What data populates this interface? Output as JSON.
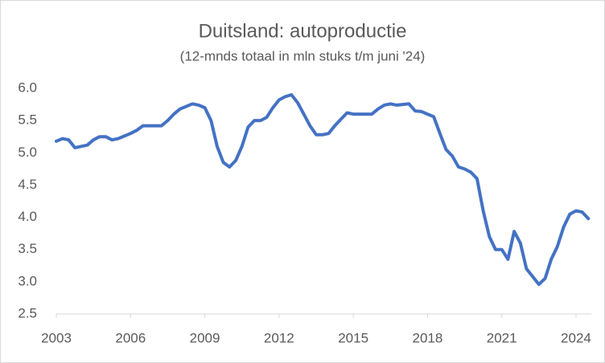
{
  "chart_data": {
    "type": "line",
    "title": "Duitsland: autoproductie",
    "subtitle": "(12-mnds totaal in mln stuks t/m juni '24)",
    "xlim": [
      2003,
      2024.62
    ],
    "xticks": [
      2003,
      2006,
      2009,
      2012,
      2015,
      2018,
      2021,
      2024
    ],
    "ylim": [
      2.5,
      6.0
    ],
    "yticks": [
      {
        "value": 2.5,
        "label": "2.5"
      },
      {
        "value": 3,
        "label": "3.0"
      },
      {
        "value": 3.5,
        "label": "3.5"
      },
      {
        "value": 4,
        "label": "4.0"
      },
      {
        "value": 4.5,
        "label": "4.5"
      },
      {
        "value": 5,
        "label": "5.0"
      },
      {
        "value": 5.5,
        "label": "5.5"
      },
      {
        "value": 6,
        "label": "6.0"
      }
    ],
    "grid": false,
    "x": [
      2003.0,
      2003.25,
      2003.5,
      2003.75,
      2004.0,
      2004.25,
      2004.5,
      2004.75,
      2005.0,
      2005.25,
      2005.5,
      2005.75,
      2006.0,
      2006.25,
      2006.5,
      2006.75,
      2007.0,
      2007.25,
      2007.5,
      2007.75,
      2008.0,
      2008.25,
      2008.5,
      2008.75,
      2009.0,
      2009.25,
      2009.5,
      2009.75,
      2010.0,
      2010.25,
      2010.5,
      2010.75,
      2011.0,
      2011.25,
      2011.5,
      2011.75,
      2012.0,
      2012.25,
      2012.5,
      2012.75,
      2013.0,
      2013.25,
      2013.5,
      2013.75,
      2014.0,
      2014.25,
      2014.5,
      2014.75,
      2015.0,
      2015.25,
      2015.5,
      2015.75,
      2016.0,
      2016.25,
      2016.5,
      2016.75,
      2017.0,
      2017.25,
      2017.5,
      2017.75,
      2018.0,
      2018.25,
      2018.5,
      2018.75,
      2019.0,
      2019.25,
      2019.5,
      2019.75,
      2020.0,
      2020.25,
      2020.5,
      2020.75,
      2021.0,
      2021.25,
      2021.5,
      2021.75,
      2022.0,
      2022.25,
      2022.5,
      2022.75,
      2023.0,
      2023.25,
      2023.5,
      2023.75,
      2024.0,
      2024.25,
      2024.5
    ],
    "series": [
      {
        "color": "#4472c4",
        "values": [
          5.18,
          5.22,
          5.2,
          5.08,
          5.1,
          5.12,
          5.2,
          5.25,
          5.25,
          5.2,
          5.22,
          5.26,
          5.3,
          5.35,
          5.42,
          5.42,
          5.42,
          5.42,
          5.5,
          5.6,
          5.68,
          5.72,
          5.76,
          5.74,
          5.7,
          5.5,
          5.1,
          4.85,
          4.78,
          4.88,
          5.1,
          5.4,
          5.5,
          5.5,
          5.55,
          5.7,
          5.82,
          5.87,
          5.9,
          5.78,
          5.6,
          5.42,
          5.28,
          5.28,
          5.3,
          5.42,
          5.52,
          5.62,
          5.6,
          5.6,
          5.6,
          5.6,
          5.68,
          5.74,
          5.76,
          5.74,
          5.75,
          5.76,
          5.65,
          5.64,
          5.6,
          5.56,
          5.3,
          5.05,
          4.95,
          4.78,
          4.75,
          4.7,
          4.6,
          4.1,
          3.7,
          3.5,
          3.5,
          3.35,
          3.78,
          3.6,
          3.2,
          3.08,
          2.96,
          3.05,
          3.35,
          3.55,
          3.85,
          4.05,
          4.1,
          4.08,
          3.98
        ]
      }
    ]
  }
}
